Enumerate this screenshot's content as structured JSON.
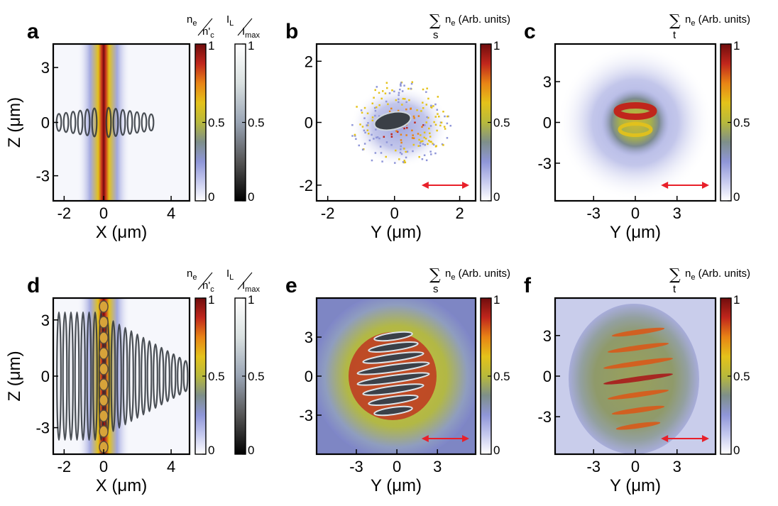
{
  "colors": {
    "arrow": "#e8202a",
    "frame": "#000000",
    "density_map": [
      "#ffffff",
      "#c5c9ee",
      "#8f96d8",
      "#7e8f8a",
      "#b7b93c",
      "#e4c21a",
      "#e88415",
      "#c0261c",
      "#700d0d"
    ],
    "intensity_map": [
      "#000000",
      "#555555",
      "#9aa5b5",
      "#d9e0e0",
      "#ffffff"
    ]
  },
  "chart_data": [
    {
      "id": "a",
      "panel_label": "a",
      "type": "heatmap",
      "xlabel": "X (μm)",
      "ylabel": "Z (μm)",
      "xticks": [
        "-2",
        "0",
        "4"
      ],
      "yticks": [
        "3",
        "0",
        "-3"
      ],
      "colorbars": [
        {
          "title_num": "n",
          "title_num_sub": "e",
          "title_den": "n'",
          "title_den_sub": "c",
          "ticks": [
            "1",
            "0.5",
            "0"
          ],
          "map": "density"
        },
        {
          "title_num": "I",
          "title_num_sub": "L",
          "title_den": "I",
          "title_den_sub": "max",
          "ticks": [
            "1",
            "0.5",
            "0"
          ],
          "map": "intensity"
        }
      ]
    },
    {
      "id": "b",
      "panel_label": "b",
      "type": "heatmap",
      "xlabel": "Y (μm)",
      "ylabel": "",
      "xticks": [
        "-2",
        "0",
        "2"
      ],
      "yticks": [
        "2",
        "0",
        "-2"
      ],
      "colorbars": [
        {
          "title_sum": "∑",
          "title_sub": "s",
          "title_text": "n",
          "title_text_sub": "e",
          "title_rest": " (Arb. units)",
          "ticks": [
            "1",
            "0.5",
            "0"
          ],
          "map": "density"
        }
      ],
      "polarization_arrow": true
    },
    {
      "id": "c",
      "panel_label": "c",
      "type": "heatmap",
      "xlabel": "Y (μm)",
      "ylabel": "",
      "xticks": [
        "-3",
        "0",
        "3"
      ],
      "yticks": [
        "3",
        "0",
        "-3"
      ],
      "colorbars": [
        {
          "title_sum": "∑",
          "title_sub": "t",
          "title_text": "n",
          "title_text_sub": "e",
          "title_rest": " (Arb. units)",
          "ticks": [
            "1",
            "0.5",
            "0"
          ],
          "map": "density"
        }
      ],
      "polarization_arrow": true
    },
    {
      "id": "d",
      "panel_label": "d",
      "type": "heatmap",
      "xlabel": "X (μm)",
      "ylabel": "Z (μm)",
      "xticks": [
        "-2",
        "0",
        "4"
      ],
      "yticks": [
        "3",
        "0",
        "-3"
      ],
      "colorbars": [
        {
          "title_num": "n",
          "title_num_sub": "e",
          "title_den": "n'",
          "title_den_sub": "c",
          "ticks": [
            "1",
            "0.5",
            "0"
          ],
          "map": "density"
        },
        {
          "title_num": "I",
          "title_num_sub": "L",
          "title_den": "I",
          "title_den_sub": "max",
          "ticks": [
            "1",
            "0.5",
            "0"
          ],
          "map": "intensity"
        }
      ]
    },
    {
      "id": "e",
      "panel_label": "e",
      "type": "heatmap",
      "xlabel": "Y (μm)",
      "ylabel": "",
      "xticks": [
        "-3",
        "0",
        "3"
      ],
      "yticks": [
        "3",
        "0",
        "-3"
      ],
      "colorbars": [
        {
          "title_sum": "∑",
          "title_sub": "s",
          "title_text": "n",
          "title_text_sub": "e",
          "title_rest": " (Arb. units)",
          "ticks": [
            "1",
            "0.5",
            "0"
          ],
          "map": "density"
        }
      ],
      "polarization_arrow": true
    },
    {
      "id": "f",
      "panel_label": "f",
      "type": "heatmap",
      "xlabel": "Y (μm)",
      "ylabel": "",
      "xticks": [
        "-3",
        "0",
        "3"
      ],
      "yticks": [
        "3",
        "0",
        "-3"
      ],
      "colorbars": [
        {
          "title_sum": "∑",
          "title_sub": "t",
          "title_text": "n",
          "title_text_sub": "e",
          "title_rest": " (Arb. units)",
          "ticks": [
            "1",
            "0.5",
            "0"
          ],
          "map": "density"
        }
      ],
      "polarization_arrow": true
    }
  ]
}
